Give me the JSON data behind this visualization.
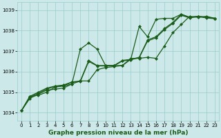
{
  "background_color": "#cce8e8",
  "grid_color": "#99cccc",
  "line_color": "#1a5c1a",
  "marker": "D",
  "marker_size": 2.0,
  "line_width": 0.9,
  "xlabel": "Graphe pression niveau de la mer (hPa)",
  "xlabel_fontsize": 6.5,
  "xlabel_fontweight": "bold",
  "xlabel_color": "#1a5c1a",
  "ylabel": "",
  "xlim": [
    -0.5,
    23.5
  ],
  "ylim": [
    1033.6,
    1039.4
  ],
  "yticks": [
    1034,
    1035,
    1036,
    1037,
    1038,
    1039
  ],
  "xticks": [
    0,
    1,
    2,
    3,
    4,
    5,
    6,
    7,
    8,
    9,
    10,
    11,
    12,
    13,
    14,
    15,
    16,
    17,
    18,
    19,
    20,
    21,
    22,
    23
  ],
  "tick_fontsize": 5.0,
  "series": [
    [
      1034.1,
      1034.7,
      1034.9,
      1035.1,
      1035.15,
      1035.2,
      1035.4,
      1037.1,
      1037.4,
      1037.1,
      1036.3,
      1036.3,
      1036.3,
      1036.6,
      1038.2,
      1037.7,
      1038.55,
      1038.6,
      1038.6,
      1038.8,
      1038.65,
      1038.7,
      1038.65,
      1038.6
    ],
    [
      1034.1,
      1034.8,
      1035.0,
      1035.2,
      1035.3,
      1035.35,
      1035.5,
      1035.55,
      1036.55,
      1036.3,
      1036.3,
      1036.3,
      1036.55,
      1036.6,
      1036.7,
      1037.55,
      1037.7,
      1038.1,
      1038.4,
      1038.8,
      1038.65,
      1038.7,
      1038.65,
      1038.6
    ],
    [
      1034.1,
      1034.75,
      1034.95,
      1035.15,
      1035.28,
      1035.32,
      1035.48,
      1035.52,
      1036.5,
      1036.28,
      1036.28,
      1036.28,
      1036.52,
      1036.58,
      1036.68,
      1037.5,
      1037.65,
      1038.05,
      1038.35,
      1038.75,
      1038.62,
      1038.68,
      1038.62,
      1038.58
    ],
    [
      1034.1,
      1034.8,
      1034.85,
      1035.0,
      1035.25,
      1035.3,
      1035.4,
      1035.55,
      1035.55,
      1036.1,
      1036.2,
      1036.25,
      1036.3,
      1036.65,
      1036.65,
      1036.7,
      1036.65,
      1037.25,
      1037.9,
      1038.3,
      1038.7,
      1038.65,
      1038.7,
      1038.6
    ]
  ]
}
